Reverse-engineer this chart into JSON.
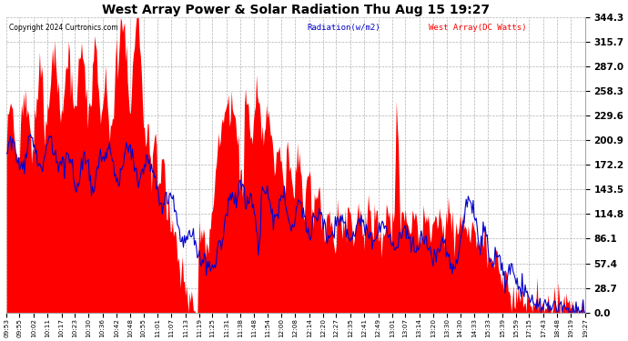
{
  "title": "West Array Power & Solar Radiation Thu Aug 15 19:27",
  "copyright": "Copyright 2024 Curtronics.com",
  "legend_radiation": "Radiation(w/m2)",
  "legend_west": "West Array(DC Watts)",
  "ylabel_right_ticks": [
    0.0,
    28.7,
    57.4,
    86.1,
    114.8,
    143.5,
    172.2,
    200.9,
    229.6,
    258.3,
    287.0,
    315.7,
    344.3
  ],
  "ymax": 344.3,
  "ymin": 0.0,
  "background_color": "#ffffff",
  "grid_color": "#aaaaaa",
  "bar_color": "#ff0000",
  "line_color": "#0000cc",
  "title_color": "#000000",
  "x_tick_labels": [
    "09:53",
    "09:55",
    "10:02",
    "10:11",
    "10:17",
    "10:23",
    "10:30",
    "10:36",
    "10:42",
    "10:48",
    "10:55",
    "11:01",
    "11:07",
    "11:13",
    "11:19",
    "11:25",
    "11:31",
    "11:38",
    "11:48",
    "11:54",
    "12:00",
    "12:08",
    "12:14",
    "12:20",
    "12:27",
    "12:35",
    "12:41",
    "12:49",
    "13:01",
    "13:07",
    "13:14",
    "13:20",
    "13:30",
    "14:30",
    "14:33",
    "15:33",
    "15:39",
    "15:59",
    "17:15",
    "17:43",
    "18:48",
    "19:19",
    "19:27"
  ]
}
